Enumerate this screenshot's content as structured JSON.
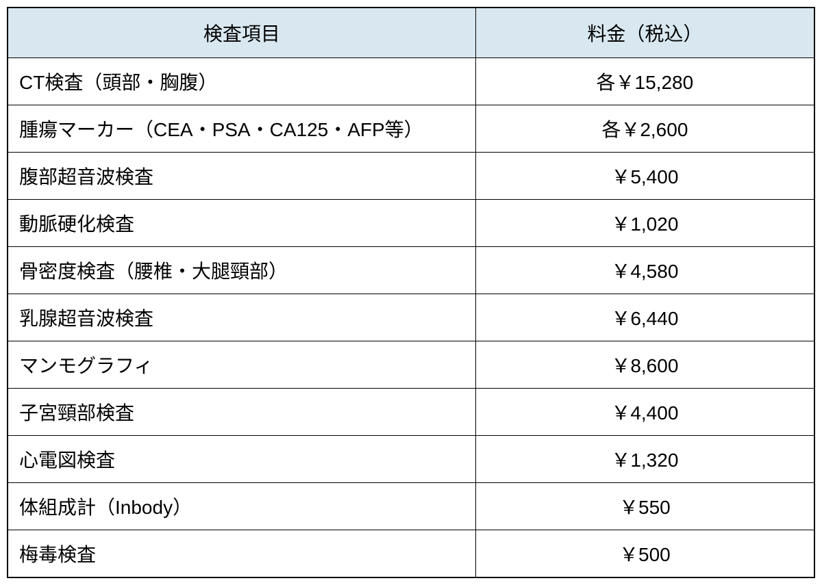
{
  "table": {
    "type": "table",
    "header_bg_color": "#d9e8f0",
    "border_color": "#000000",
    "background_color": "#ffffff",
    "text_color": "#000000",
    "font_size": 28,
    "columns": [
      {
        "label": "検査項目",
        "width": "58%",
        "align": "left"
      },
      {
        "label": "料金（税込）",
        "width": "42%",
        "align": "center"
      }
    ],
    "rows": [
      {
        "item": "CT検査（頭部・胸腹）",
        "price": "各￥15,280"
      },
      {
        "item": "腫瘍マーカー（CEA・PSA・CA125・AFP等）",
        "price": "各￥2,600"
      },
      {
        "item": "腹部超音波検査",
        "price": "￥5,400"
      },
      {
        "item": "動脈硬化検査",
        "price": "￥1,020"
      },
      {
        "item": "骨密度検査（腰椎・大腿頸部）",
        "price": "￥4,580"
      },
      {
        "item": "乳腺超音波検査",
        "price": "￥6,440"
      },
      {
        "item": "マンモグラフィ",
        "price": "￥8,600"
      },
      {
        "item": "子宮頸部検査",
        "price": "￥4,400"
      },
      {
        "item": "心電図検査",
        "price": "￥1,320"
      },
      {
        "item": "体組成計（Inbody）",
        "price": "￥550"
      },
      {
        "item": "梅毒検査",
        "price": "￥500"
      }
    ]
  }
}
